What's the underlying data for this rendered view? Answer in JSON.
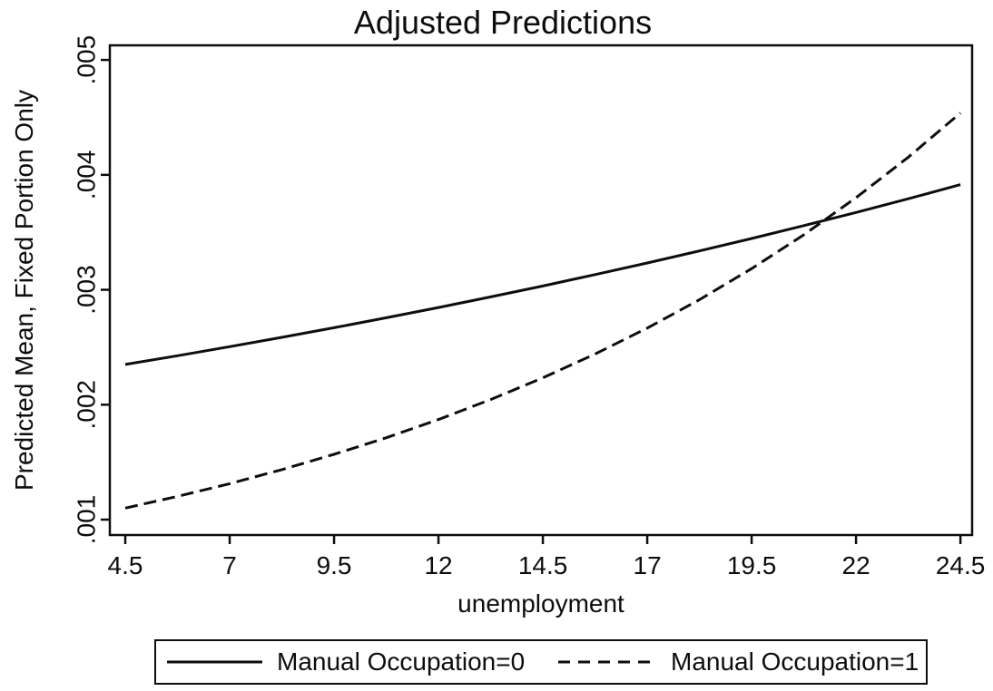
{
  "figure": {
    "background": "#ffffff",
    "ink_color": "#0d0d0d"
  },
  "chart_data": {
    "type": "line",
    "title": "Adjusted Predictions",
    "xlabel": "unemployment",
    "ylabel": "Predicted Mean, Fixed Portion Only",
    "grid": false,
    "legend_position": "bottom",
    "xlim": [
      4.13,
      24.78
    ],
    "ylim": [
      0.000866,
      0.005127
    ],
    "xticks": [
      4.5,
      7,
      9.5,
      12,
      14.5,
      17,
      19.5,
      22,
      24.5
    ],
    "xtick_labels": [
      "4.5",
      "7",
      "9.5",
      "12",
      "14.5",
      "17",
      "19.5",
      "22",
      "24.5"
    ],
    "yticks": [
      0.001,
      0.002,
      0.003,
      0.004,
      0.005
    ],
    "ytick_labels": [
      ".001",
      ".002",
      ".003",
      ".004",
      ".005"
    ],
    "x": [
      4.5,
      5.75,
      7,
      8.25,
      9.5,
      10.75,
      12,
      13.25,
      14.5,
      15.75,
      17,
      18.25,
      19.5,
      20.75,
      22,
      23.25,
      24.5
    ],
    "series": [
      {
        "name": "Manual Occupation=0",
        "style": "solid",
        "color": "#0d0d0d",
        "values": [
          0.00235,
          0.002426,
          0.002505,
          0.002586,
          0.00267,
          0.002757,
          0.002846,
          0.002938,
          0.003033,
          0.003132,
          0.003233,
          0.003338,
          0.003446,
          0.003558,
          0.003673,
          0.003792,
          0.003915
        ]
      },
      {
        "name": "Manual Occupation=1",
        "style": "dashed",
        "color": "#0d0d0d",
        "values": [
          0.0011,
          0.001202,
          0.001313,
          0.001435,
          0.001568,
          0.001713,
          0.001871,
          0.002045,
          0.002234,
          0.002441,
          0.002667,
          0.002914,
          0.003184,
          0.003479,
          0.003801,
          0.004153,
          0.004538
        ]
      }
    ]
  }
}
